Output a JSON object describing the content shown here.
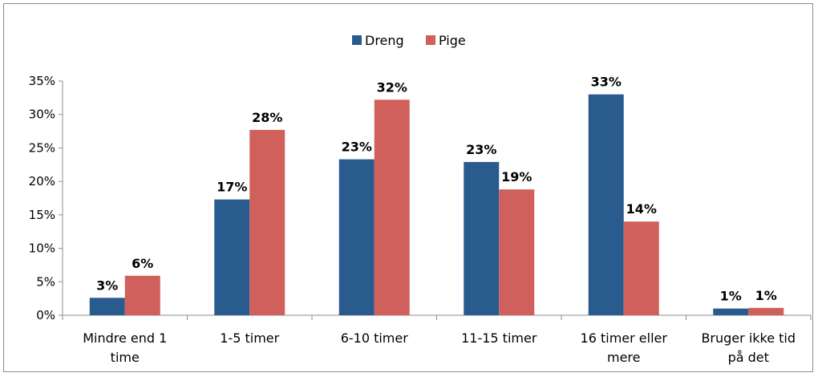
{
  "chart_data": {
    "type": "bar",
    "categories": [
      [
        "Mindre end 1",
        "time"
      ],
      [
        "1-5 timer"
      ],
      [
        "6-10 timer"
      ],
      [
        "11-15 timer"
      ],
      [
        "16 timer eller",
        "mere"
      ],
      [
        "Bruger ikke tid",
        "på det"
      ]
    ],
    "series": [
      {
        "name": "Dreng",
        "color": "#2a5b8f",
        "values": [
          2.6,
          17.3,
          23.3,
          22.9,
          33.0,
          1.0
        ],
        "labels": [
          "3%",
          "17%",
          "23%",
          "23%",
          "33%",
          "1%"
        ]
      },
      {
        "name": "Pige",
        "color": "#d0605b",
        "values": [
          5.9,
          27.7,
          32.2,
          18.8,
          14.0,
          1.1
        ],
        "labels": [
          "6%",
          "28%",
          "32%",
          "19%",
          "14%",
          "1%"
        ]
      }
    ],
    "ylim": [
      0,
      35
    ],
    "yticks": [
      0,
      5,
      10,
      15,
      20,
      25,
      30,
      35
    ],
    "ytick_suffix": "%",
    "legend_position": "top-center",
    "grid": false
  }
}
